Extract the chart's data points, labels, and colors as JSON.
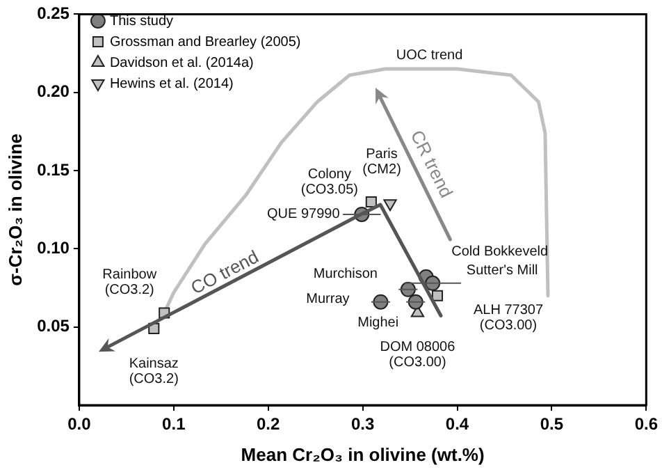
{
  "chart_data": {
    "type": "scatter",
    "xlabel": "Mean Cr₂O₃ in olivine (wt.%)",
    "ylabel": "σ-Cr₂O₃ in olivine",
    "xlim": [
      0,
      0.6
    ],
    "xticks": [
      {
        "value": 0,
        "label": "0.0"
      },
      {
        "value": 0.1,
        "label": "0.1"
      },
      {
        "value": 0.2,
        "label": "0.2"
      },
      {
        "value": 0.3,
        "label": "0.3"
      },
      {
        "value": 0.4,
        "label": "0.4"
      },
      {
        "value": 0.5,
        "label": "0.5"
      },
      {
        "value": 0.6,
        "label": "0.6"
      }
    ],
    "ylim": [
      0,
      0.25
    ],
    "yticks": [
      {
        "value": 0.05,
        "label": "0.05"
      },
      {
        "value": 0.1,
        "label": "0.10"
      },
      {
        "value": 0.15,
        "label": "0.15"
      },
      {
        "value": 0.2,
        "label": "0.20"
      },
      {
        "value": 0.25,
        "label": "0.25"
      }
    ],
    "grid": false,
    "legend": "top left",
    "series": [
      {
        "type": "line",
        "color": "#c0c0c0",
        "x": [
          0.09,
          0.1,
          0.133,
          0.176,
          0.214,
          0.252,
          0.286,
          0.324,
          0.4,
          0.457,
          0.486,
          0.493,
          0.494,
          0.496
        ],
        "values": [
          0.059,
          0.072,
          0.103,
          0.134,
          0.168,
          0.194,
          0.211,
          0.215,
          0.215,
          0.211,
          0.194,
          0.174,
          0.14,
          0.07
        ]
      },
      {
        "name": "This study",
        "marker": "circle",
        "color": "#808080",
        "x": [
          0.299,
          0.367,
          0.374,
          0.348,
          0.356,
          0.319
        ],
        "values": [
          0.122,
          0.082,
          0.078,
          0.074,
          0.066,
          0.066
        ],
        "xerrors": [
          0.02,
          null,
          0.03,
          0.01,
          0.01,
          0.01
        ]
      },
      {
        "name": "Grossman and Brearley (2005)",
        "marker": "square",
        "color": "#c0c0c0",
        "x": [
          0.309,
          0.379,
          0.09,
          0.079
        ],
        "values": [
          0.13,
          0.07,
          0.059,
          0.049
        ]
      },
      {
        "name": "Davidson et al. (2014a)",
        "marker": "triangle",
        "color": "#c0c0c0",
        "x": [
          0.358
        ],
        "values": [
          0.059
        ]
      },
      {
        "name": "Hewins et al. (2014)",
        "marker": "triangle-down",
        "color": "#c0c0c0",
        "x": [
          0.329
        ],
        "values": [
          0.129
        ]
      }
    ],
    "annotations": [
      {
        "text": "UOC trend",
        "x": 0.4,
        "y": 0.215
      },
      "CO trend",
      "CR trend",
      {
        "text": "QUE 97990",
        "x": 0.299,
        "y": 0.122
      },
      {
        "text": "Colony\n(CO3.05)",
        "x": 0.309,
        "y": 0.13
      },
      {
        "text": "Paris\n(CM2)",
        "x": 0.329,
        "y": 0.129
      },
      {
        "text": "Rainbow\n(CO3.2)",
        "x": 0.09,
        "y": 0.059
      },
      {
        "text": "Kainsaz\n(CO3.2)",
        "x": 0.079,
        "y": 0.049
      },
      {
        "text": "Murchison",
        "x": 0.348,
        "y": 0.074
      },
      {
        "text": "Murray",
        "x": 0.319,
        "y": 0.066
      },
      {
        "text": "Mighei",
        "x": 0.356,
        "y": 0.066
      },
      {
        "text": "Cold Bokkeveld",
        "x": 0.367,
        "y": 0.082
      },
      {
        "text": "Sutter's Mill",
        "x": 0.374,
        "y": 0.078
      },
      {
        "text": "ALH 77307\n(CO3.00)",
        "x": 0.379,
        "y": 0.07
      },
      {
        "text": "DOM 08006\n(CO3.00)",
        "x": 0.358,
        "y": 0.059
      }
    ]
  }
}
